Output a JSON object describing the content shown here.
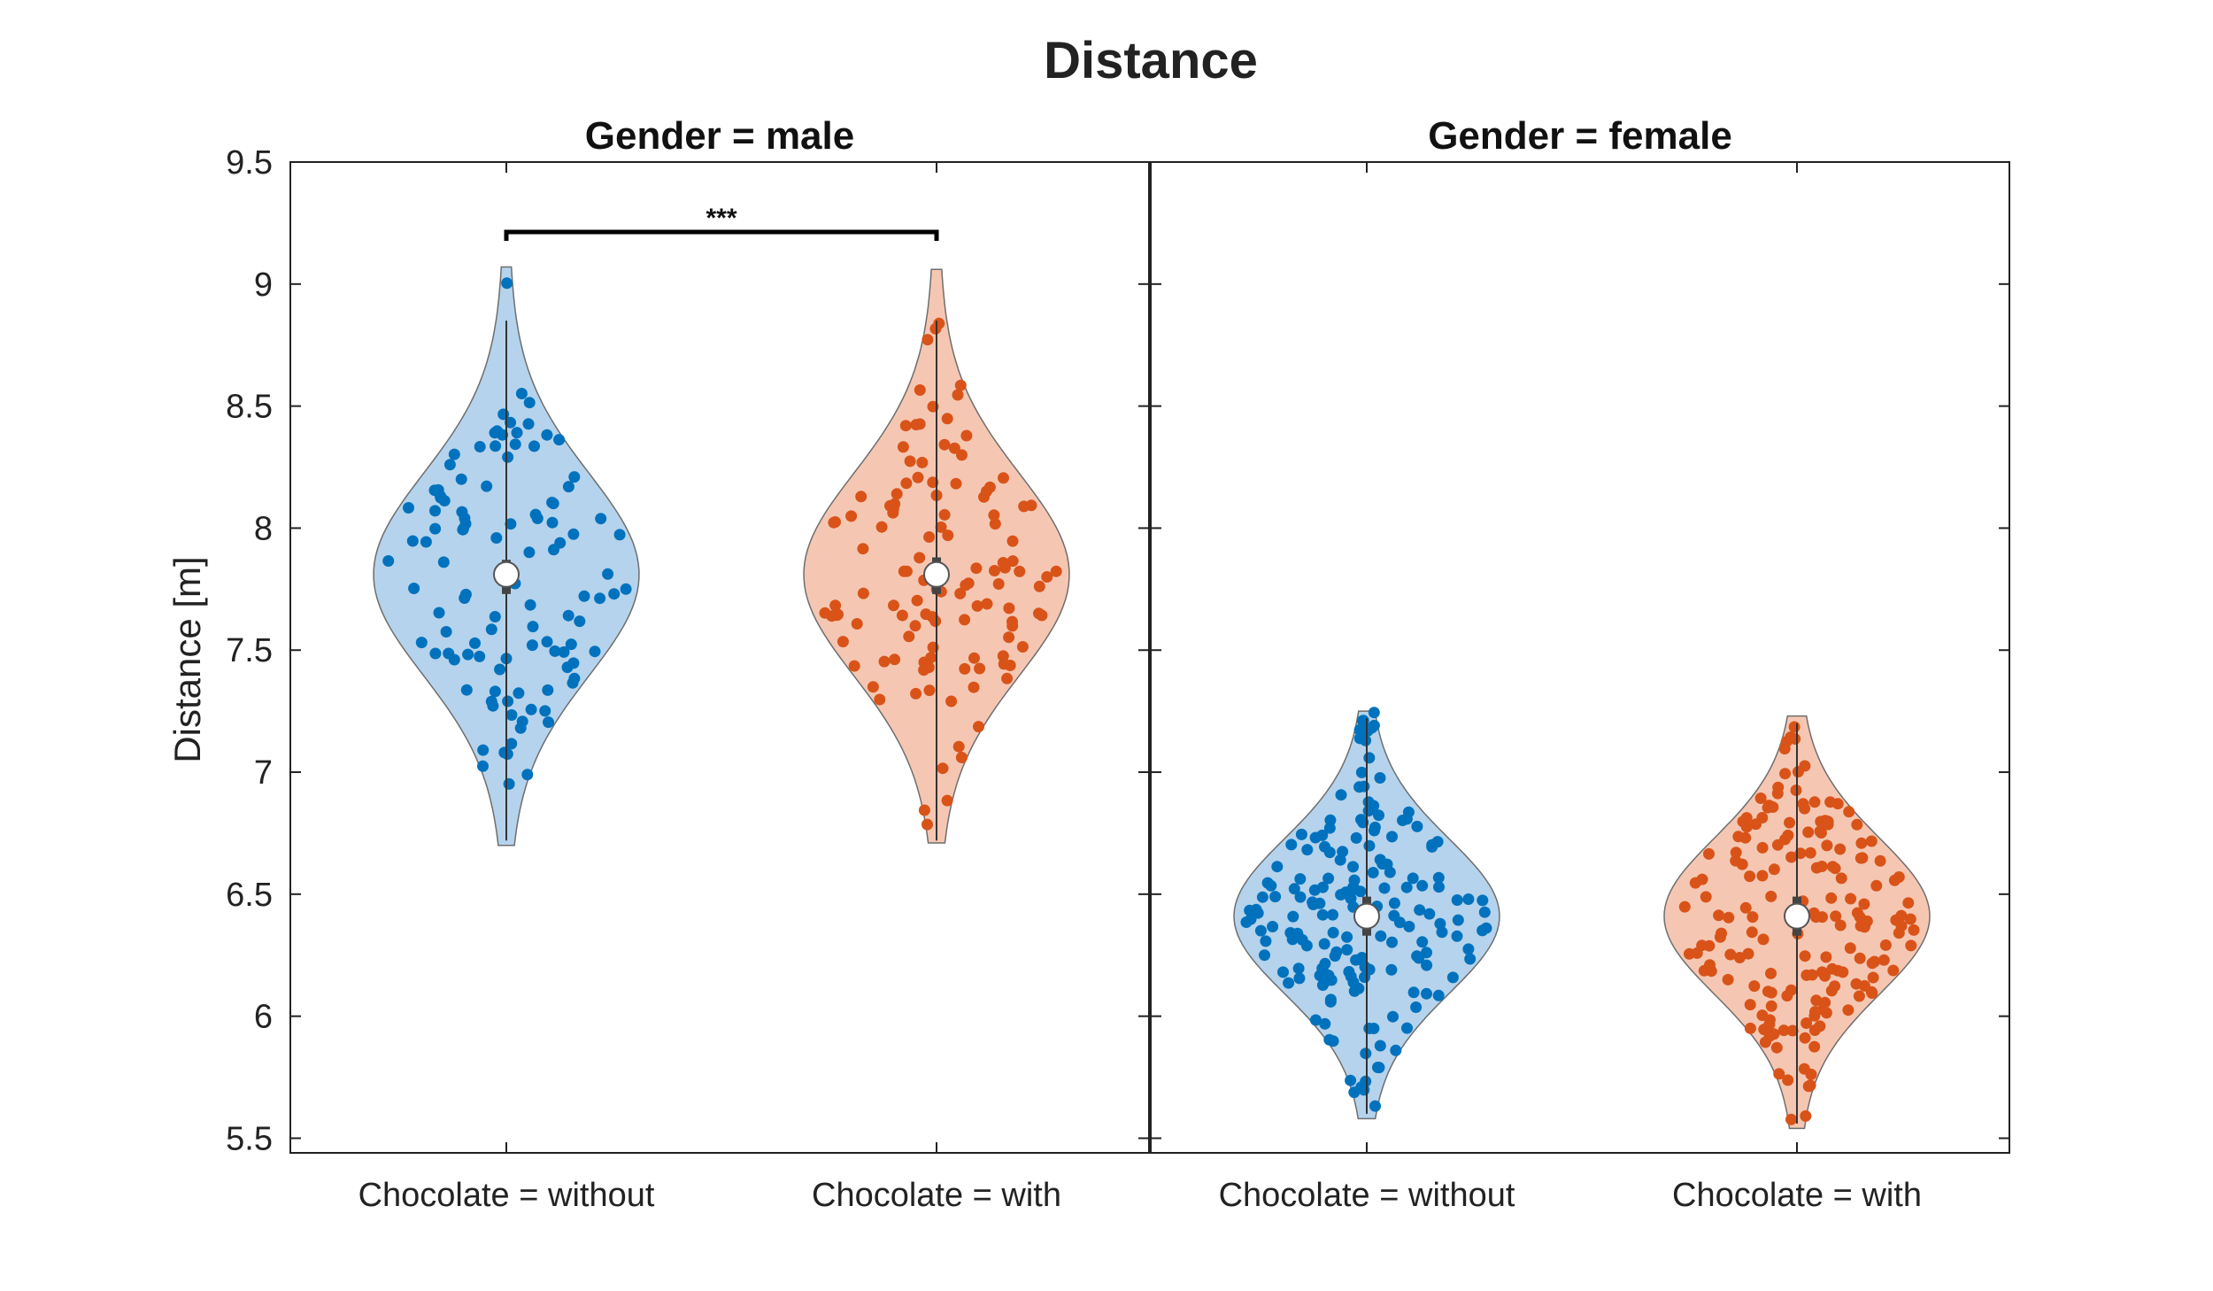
{
  "chart_data": {
    "type": "violin",
    "title": "Distance",
    "ylabel": "Distance [m]",
    "ylim": [
      5.44,
      9.5
    ],
    "yticks": [
      "5.5",
      "6",
      "6.5",
      "7",
      "7.5",
      "8",
      "8.5",
      "9",
      "9.5"
    ],
    "grid": false,
    "colors": {
      "without": "#0072BD",
      "without_fill": "#B5D3EC",
      "with": "#D95319",
      "with_fill": "#F5C7B3"
    },
    "panels": [
      {
        "title": "Gender = male",
        "categories": [
          "Chocolate = without",
          "Chocolate = with"
        ],
        "groups": [
          {
            "category": "Chocolate = without",
            "median": 7.81,
            "q1": 7.73,
            "q3": 7.87,
            "whisker_low": 6.72,
            "whisker_high": 8.85,
            "min": 6.7,
            "max": 9.07,
            "n": 110
          },
          {
            "category": "Chocolate = with",
            "median": 7.81,
            "q1": 7.73,
            "q3": 7.88,
            "whisker_low": 6.72,
            "whisker_high": 8.85,
            "min": 6.71,
            "max": 9.06,
            "n": 120
          }
        ],
        "significance": {
          "between": [
            "Chocolate = without",
            "Chocolate = with"
          ],
          "label": "***"
        }
      },
      {
        "title": "Gender = female",
        "categories": [
          "Chocolate = without",
          "Chocolate = with"
        ],
        "groups": [
          {
            "category": "Chocolate = without",
            "median": 6.41,
            "q1": 6.33,
            "q3": 6.49,
            "whisker_low": 5.6,
            "whisker_high": 7.22,
            "min": 5.58,
            "max": 7.25,
            "n": 180
          },
          {
            "category": "Chocolate = with",
            "median": 6.41,
            "q1": 6.33,
            "q3": 6.49,
            "whisker_low": 5.56,
            "whisker_high": 7.2,
            "min": 5.54,
            "max": 7.23,
            "n": 180
          }
        ]
      }
    ]
  }
}
